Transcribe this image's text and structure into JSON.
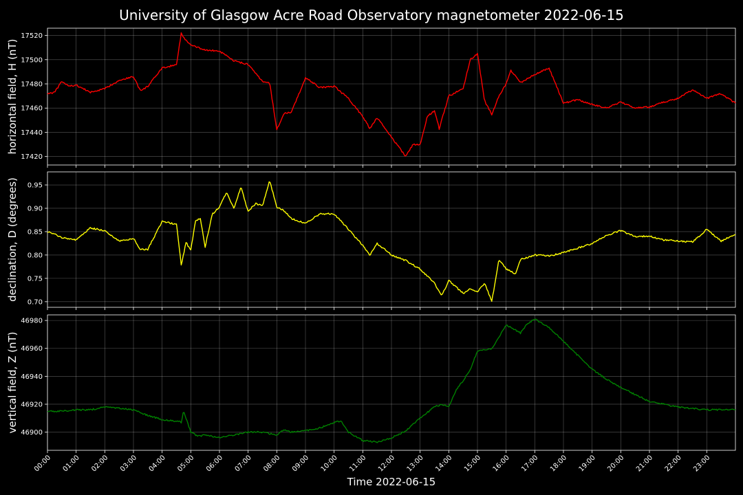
{
  "chart_data": {
    "type": "line",
    "title": "University of Glasgow Acre Road Observatory magnetometer 2022-06-15",
    "xlabel": "Time 2022-06-15",
    "x_ticks": [
      "00:00",
      "01:00",
      "02:00",
      "03:00",
      "04:00",
      "05:00",
      "06:00",
      "07:00",
      "08:00",
      "09:00",
      "10:00",
      "11:00",
      "12:00",
      "13:00",
      "14:00",
      "15:00",
      "16:00",
      "17:00",
      "18:00",
      "19:00",
      "20:00",
      "21:00",
      "22:00",
      "23:00"
    ],
    "xlim": [
      "00:00",
      "24:00"
    ],
    "grid": true,
    "panels": [
      {
        "ylabel": "horizontal field, H (nT)",
        "color": "#ff0000",
        "ylim": [
          17413,
          17526
        ],
        "yticks": [
          17420,
          17440,
          17460,
          17480,
          17500,
          17520
        ],
        "series": {
          "x": [
            "00:00",
            "00:15",
            "00:30",
            "00:45",
            "01:00",
            "01:30",
            "02:00",
            "02:30",
            "03:00",
            "03:15",
            "03:30",
            "04:00",
            "04:30",
            "04:40",
            "04:45",
            "05:00",
            "05:30",
            "06:00",
            "06:30",
            "07:00",
            "07:30",
            "07:45",
            "08:00",
            "08:15",
            "08:30",
            "09:00",
            "09:30",
            "10:00",
            "10:30",
            "11:00",
            "11:15",
            "11:30",
            "12:00",
            "12:30",
            "12:45",
            "13:00",
            "13:15",
            "13:30",
            "13:40",
            "14:00",
            "14:30",
            "14:45",
            "15:00",
            "15:15",
            "15:30",
            "15:45",
            "16:00",
            "16:10",
            "16:30",
            "17:00",
            "17:30",
            "18:00",
            "18:30",
            "19:00",
            "19:30",
            "20:00",
            "20:30",
            "21:00",
            "21:30",
            "22:00",
            "22:30",
            "23:00",
            "23:30",
            "24:00"
          ],
          "y": [
            17472,
            17473,
            17482,
            17478,
            17479,
            17473,
            17476,
            17483,
            17486,
            17474,
            17478,
            17493,
            17496,
            17522,
            17518,
            17512,
            17508,
            17507,
            17499,
            17496,
            17482,
            17481,
            17442,
            17456,
            17456,
            17485,
            17477,
            17478,
            17468,
            17453,
            17443,
            17452,
            17436,
            17420,
            17430,
            17430,
            17453,
            17458,
            17443,
            17470,
            17476,
            17500,
            17505,
            17466,
            17455,
            17470,
            17480,
            17491,
            17481,
            17488,
            17493,
            17464,
            17467,
            17463,
            17460,
            17465,
            17460,
            17461,
            17465,
            17468,
            17475,
            17468,
            17472,
            17464
          ]
        }
      },
      {
        "ylabel": "declination, D (degrees)",
        "color": "#ffff00",
        "ylim": [
          0.688,
          0.978
        ],
        "yticks": [
          0.7,
          0.75,
          0.8,
          0.85,
          0.9,
          0.95
        ],
        "series": {
          "x": [
            "00:00",
            "00:30",
            "01:00",
            "01:30",
            "02:00",
            "02:30",
            "03:00",
            "03:15",
            "03:30",
            "04:00",
            "04:30",
            "04:40",
            "04:50",
            "05:00",
            "05:10",
            "05:20",
            "05:30",
            "05:45",
            "06:00",
            "06:15",
            "06:30",
            "06:45",
            "07:00",
            "07:15",
            "07:30",
            "07:45",
            "08:00",
            "08:15",
            "08:30",
            "09:00",
            "09:30",
            "10:00",
            "10:30",
            "11:00",
            "11:15",
            "11:30",
            "12:00",
            "12:30",
            "13:00",
            "13:30",
            "13:45",
            "14:00",
            "14:30",
            "14:45",
            "15:00",
            "15:15",
            "15:30",
            "15:45",
            "16:00",
            "16:20",
            "16:30",
            "17:00",
            "17:30",
            "18:00",
            "18:30",
            "19:00",
            "19:30",
            "20:00",
            "20:30",
            "21:00",
            "21:30",
            "22:00",
            "22:30",
            "23:00",
            "23:30",
            "24:00"
          ],
          "y": [
            0.85,
            0.838,
            0.832,
            0.858,
            0.852,
            0.83,
            0.835,
            0.812,
            0.812,
            0.872,
            0.866,
            0.778,
            0.827,
            0.81,
            0.873,
            0.878,
            0.818,
            0.888,
            0.902,
            0.935,
            0.9,
            0.945,
            0.893,
            0.91,
            0.905,
            0.96,
            0.902,
            0.895,
            0.878,
            0.868,
            0.888,
            0.888,
            0.855,
            0.82,
            0.8,
            0.825,
            0.8,
            0.788,
            0.77,
            0.74,
            0.712,
            0.745,
            0.718,
            0.728,
            0.72,
            0.74,
            0.7,
            0.79,
            0.77,
            0.76,
            0.79,
            0.8,
            0.798,
            0.805,
            0.815,
            0.825,
            0.842,
            0.852,
            0.84,
            0.84,
            0.832,
            0.83,
            0.828,
            0.855,
            0.83,
            0.845
          ]
        }
      },
      {
        "ylabel": "vertical field, Z (nT)",
        "color": "#008000",
        "ylim": [
          46887,
          46984
        ],
        "yticks": [
          46900,
          46920,
          46940,
          46960,
          46980
        ],
        "series": {
          "x": [
            "00:00",
            "00:30",
            "01:00",
            "01:30",
            "02:00",
            "02:30",
            "03:00",
            "03:30",
            "04:00",
            "04:30",
            "04:40",
            "04:45",
            "05:00",
            "05:15",
            "05:30",
            "06:00",
            "06:30",
            "07:00",
            "07:30",
            "08:00",
            "08:15",
            "08:30",
            "09:00",
            "09:30",
            "10:00",
            "10:15",
            "10:30",
            "11:00",
            "11:30",
            "12:00",
            "12:30",
            "13:00",
            "13:30",
            "13:45",
            "14:00",
            "14:15",
            "14:30",
            "14:45",
            "15:00",
            "15:30",
            "15:45",
            "16:00",
            "16:30",
            "16:45",
            "17:00",
            "17:30",
            "18:00",
            "18:30",
            "19:00",
            "19:30",
            "20:00",
            "20:30",
            "21:00",
            "21:30",
            "22:00",
            "22:30",
            "23:00",
            "23:30",
            "24:00"
          ],
          "y": [
            46915,
            46915,
            46916,
            46916,
            46918,
            46917,
            46916,
            46912,
            46909,
            46908,
            46907,
            46915,
            46900,
            46897,
            46898,
            46896,
            46898,
            46900,
            46900,
            46898,
            46902,
            46900,
            46901,
            46903,
            46907,
            46908,
            46900,
            46894,
            46893,
            46896,
            46901,
            46910,
            46918,
            46920,
            46918,
            46930,
            46937,
            46945,
            46958,
            46960,
            46968,
            46977,
            46971,
            46978,
            46981,
            46975,
            46965,
            46955,
            46945,
            46938,
            46932,
            46927,
            46922,
            46920,
            46918,
            46917,
            46916,
            46916,
            46916
          ]
        }
      }
    ]
  }
}
